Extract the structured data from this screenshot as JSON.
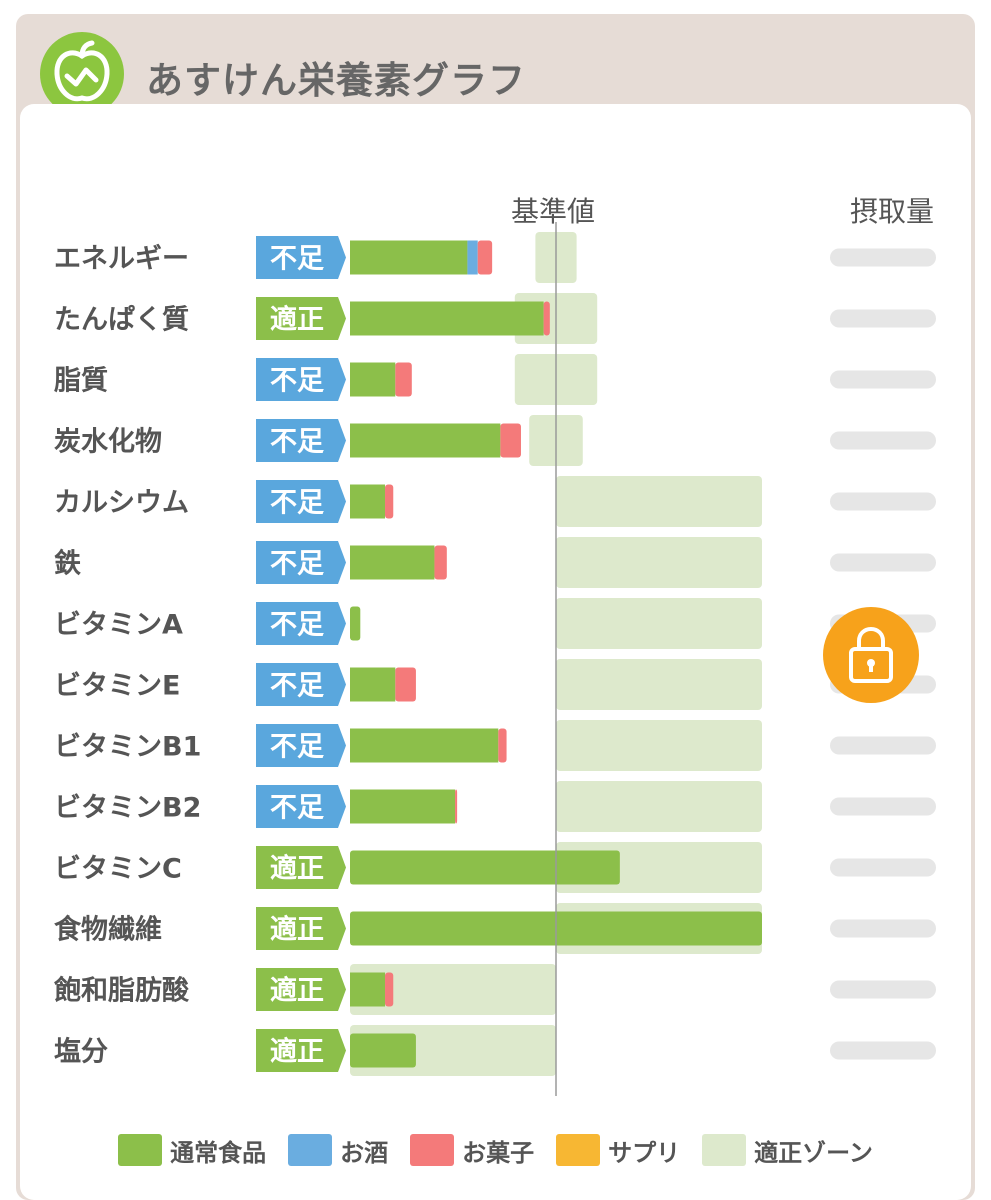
{
  "app": {
    "title": "あすけん栄養素グラフ"
  },
  "columns": {
    "reference_label": "基準値",
    "intake_label": "摂取量"
  },
  "colors": {
    "normal_food": "#8cbf4a",
    "alcohol": "#6aade0",
    "snacks": "#f47a7a",
    "supplement": "#f7b733",
    "zone": "#dde9cc",
    "badge_short": "#5aa7dd",
    "badge_ok": "#8cbf4a",
    "lock": "#f7a21b"
  },
  "legend": [
    {
      "label": "通常食品",
      "color": "#8cbf4a"
    },
    {
      "label": "お酒",
      "color": "#6aade0"
    },
    {
      "label": "お菓子",
      "color": "#f47a7a"
    },
    {
      "label": "サプリ",
      "color": "#f7b733"
    },
    {
      "label": "適正ゾーン",
      "color": "#dde9cc"
    }
  ],
  "lock_icon": "lock-icon",
  "chart_data": {
    "type": "bar",
    "orientation": "horizontal",
    "stacked": true,
    "unit": "percent of reference value",
    "reference_value": 100,
    "xlim": [
      0,
      200
    ],
    "series_names": [
      "通常食品",
      "お酒",
      "お菓子",
      "サプリ"
    ],
    "rows": [
      {
        "name": "エネルギー",
        "status": "不足",
        "segments": [
          57,
          5,
          7,
          0
        ],
        "zone": [
          90,
          110
        ]
      },
      {
        "name": "たんぱく質",
        "status": "適正",
        "segments": [
          94,
          0,
          3,
          0
        ],
        "zone": [
          80,
          120
        ]
      },
      {
        "name": "脂質",
        "status": "不足",
        "segments": [
          22,
          0,
          8,
          0
        ],
        "zone": [
          80,
          120
        ]
      },
      {
        "name": "炭水化物",
        "status": "不足",
        "segments": [
          73,
          0,
          10,
          0
        ],
        "zone": [
          87,
          113
        ]
      },
      {
        "name": "カルシウム",
        "status": "不足",
        "segments": [
          17,
          0,
          4,
          0
        ],
        "zone": [
          100,
          200
        ]
      },
      {
        "name": "鉄",
        "status": "不足",
        "segments": [
          41,
          0,
          6,
          0
        ],
        "zone": [
          100,
          200
        ]
      },
      {
        "name": "ビタミンA",
        "status": "不足",
        "segments": [
          5,
          0,
          0,
          0
        ],
        "zone": [
          100,
          200
        ]
      },
      {
        "name": "ビタミンE",
        "status": "不足",
        "segments": [
          22,
          0,
          10,
          0
        ],
        "zone": [
          100,
          200
        ]
      },
      {
        "name": "ビタミンB1",
        "status": "不足",
        "segments": [
          72,
          0,
          4,
          0
        ],
        "zone": [
          100,
          200
        ]
      },
      {
        "name": "ビタミンB2",
        "status": "不足",
        "segments": [
          51,
          0,
          1,
          0
        ],
        "zone": [
          100,
          200
        ]
      },
      {
        "name": "ビタミンC",
        "status": "適正",
        "segments": [
          131,
          0,
          0,
          0
        ],
        "zone": [
          100,
          200
        ]
      },
      {
        "name": "食物繊維",
        "status": "適正",
        "segments": [
          200,
          0,
          0,
          0
        ],
        "zone": [
          100,
          200
        ]
      },
      {
        "name": "飽和脂肪酸",
        "status": "適正",
        "segments": [
          17,
          0,
          4,
          0
        ],
        "zone": [
          0,
          100
        ]
      },
      {
        "name": "塩分",
        "status": "適正",
        "segments": [
          32,
          0,
          0,
          0
        ],
        "zone": [
          0,
          100
        ]
      }
    ]
  }
}
